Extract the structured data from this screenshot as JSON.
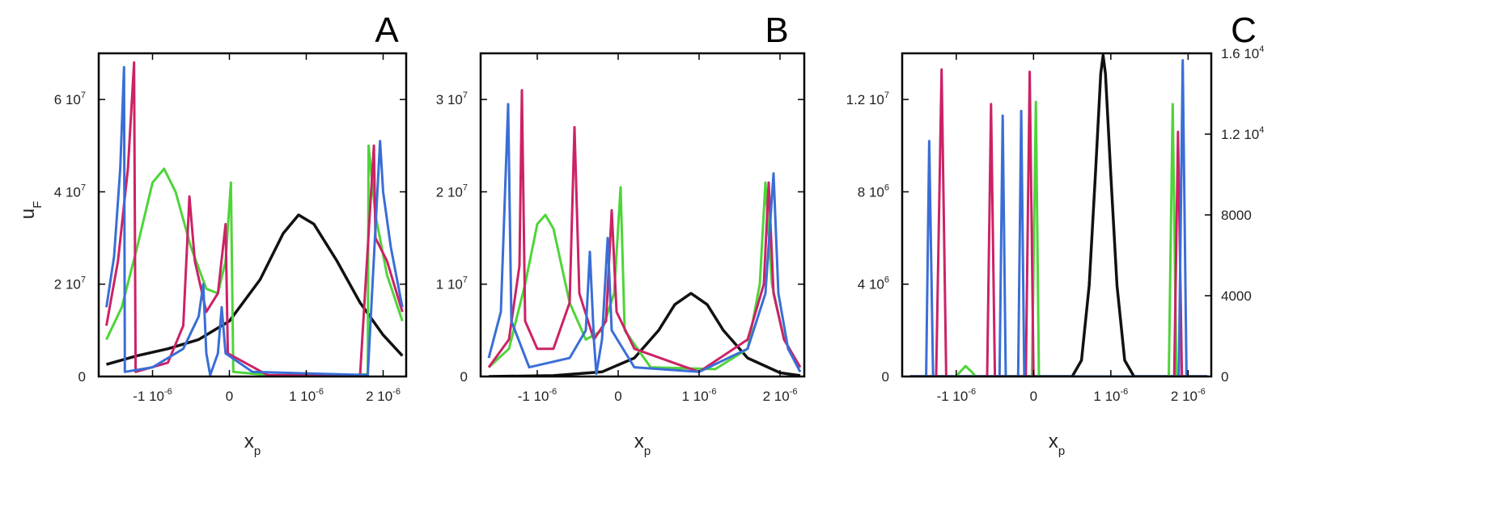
{
  "chart_data": [
    {
      "panel": "A",
      "type": "line",
      "xlim": [
        -1.7e-06,
        2.3e-06
      ],
      "ylim": [
        0,
        70000000.0
      ],
      "xticks": [
        {
          "v": -1e-06,
          "label": "-1 10",
          "exp": "-6"
        },
        {
          "v": 0,
          "label": "0",
          "exp": ""
        },
        {
          "v": 1e-06,
          "label": "1 10",
          "exp": "-6"
        },
        {
          "v": 2e-06,
          "label": "2 10",
          "exp": "-6"
        }
      ],
      "yticks": [
        {
          "v": 0,
          "label": "0",
          "exp": ""
        },
        {
          "v": 20000000.0,
          "label": "2 10",
          "exp": "7"
        },
        {
          "v": 40000000.0,
          "label": "4 10",
          "exp": "7"
        },
        {
          "v": 60000000.0,
          "label": "6 10",
          "exp": "7"
        }
      ],
      "xlabel": "x",
      "xlabel_sub": "p",
      "ylabel": "u",
      "ylabel_sub": "F",
      "series": [
        {
          "color": "#111111",
          "points": [
            [
              -1.6e-06,
              2600000.0
            ],
            [
              -1.2e-06,
              4500000.0
            ],
            [
              -8e-07,
              6000000.0
            ],
            [
              -4e-07,
              8000000.0
            ],
            [
              0,
              12000000.0
            ],
            [
              4e-07,
              21000000.0
            ],
            [
              7e-07,
              31000000.0
            ],
            [
              9e-07,
              35000000.0
            ],
            [
              1.1e-06,
              33000000.0
            ],
            [
              1.4e-06,
              25000000.0
            ],
            [
              1.7e-06,
              16000000.0
            ],
            [
              2e-06,
              9000000.0
            ],
            [
              2.25e-06,
              4500000.0
            ]
          ]
        },
        {
          "color": "#4fd43a",
          "points": [
            [
              -1.6e-06,
              8000000.0
            ],
            [
              -1.4e-06,
              15000000.0
            ],
            [
              -1.2e-06,
              28000000.0
            ],
            [
              -1e-06,
              42000000.0
            ],
            [
              -8.5e-07,
              45000000.0
            ],
            [
              -7e-07,
              40000000.0
            ],
            [
              -5e-07,
              28000000.0
            ],
            [
              -3e-07,
              19000000.0
            ],
            [
              -1.5e-07,
              18000000.0
            ],
            [
              -5e-08,
              25000000.0
            ],
            [
              2e-08,
              42000000.0
            ],
            [
              5e-08,
              1000000.0
            ],
            [
              5e-07,
              300000.0
            ],
            [
              1.5e-06,
              200000.0
            ],
            [
              1.8e-06,
              500000.0
            ],
            [
              1.81e-06,
              50000000.0
            ],
            [
              1.9e-06,
              35000000.0
            ],
            [
              2.05e-06,
              22000000.0
            ],
            [
              2.25e-06,
              12000000.0
            ]
          ]
        },
        {
          "color": "#cc2266",
          "points": [
            [
              -1.6e-06,
              11000000.0
            ],
            [
              -1.45e-06,
              25000000.0
            ],
            [
              -1.32e-06,
              45000000.0
            ],
            [
              -1.24e-06,
              68000000.0
            ],
            [
              -1.22e-06,
              1000000.0
            ],
            [
              -8e-07,
              3000000.0
            ],
            [
              -6e-07,
              11000000.0
            ],
            [
              -5.2e-07,
              39000000.0
            ],
            [
              -4.5e-07,
              25000000.0
            ],
            [
              -3e-07,
              14000000.0
            ],
            [
              -1.5e-07,
              18000000.0
            ],
            [
              -5e-08,
              33000000.0
            ],
            [
              -2e-08,
              5000000.0
            ],
            [
              5e-07,
              300000.0
            ],
            [
              1.7e-06,
              200000.0
            ],
            [
              1.88e-06,
              50000000.0
            ],
            [
              1.9e-06,
              30000000.0
            ],
            [
              2.05e-06,
              25000000.0
            ],
            [
              2.25e-06,
              14000000.0
            ]
          ]
        },
        {
          "color": "#3a6ed6",
          "points": [
            [
              -1.6e-06,
              15000000.0
            ],
            [
              -1.5e-06,
              26000000.0
            ],
            [
              -1.42e-06,
              45000000.0
            ],
            [
              -1.37e-06,
              67000000.0
            ],
            [
              -1.36e-06,
              1000000.0
            ],
            [
              -1e-06,
              2000000.0
            ],
            [
              -6e-07,
              6000000.0
            ],
            [
              -4e-07,
              13000000.0
            ],
            [
              -3.4e-07,
              20000000.0
            ],
            [
              -3e-07,
              5000000.0
            ],
            [
              -2.5e-07,
              300000.0
            ],
            [
              -1.5e-07,
              5000000.0
            ],
            [
              -1e-07,
              15000000.0
            ],
            [
              -5e-08,
              5000000.0
            ],
            [
              3e-07,
              1000000.0
            ],
            [
              1.8e-06,
              300000.0
            ],
            [
              1.96e-06,
              51000000.0
            ],
            [
              2e-06,
              40000000.0
            ],
            [
              2.1e-06,
              28000000.0
            ],
            [
              2.25e-06,
              15000000.0
            ]
          ]
        }
      ]
    },
    {
      "panel": "B",
      "type": "line",
      "xlim": [
        -1.7e-06,
        2.3e-06
      ],
      "ylim": [
        0,
        35000000.0
      ],
      "xticks": [
        {
          "v": -1e-06,
          "label": "-1 10",
          "exp": "-6"
        },
        {
          "v": 0,
          "label": "0",
          "exp": ""
        },
        {
          "v": 1e-06,
          "label": "1 10",
          "exp": "-6"
        },
        {
          "v": 2e-06,
          "label": "2 10",
          "exp": "-6"
        }
      ],
      "yticks": [
        {
          "v": 0,
          "label": "0",
          "exp": ""
        },
        {
          "v": 10000000.0,
          "label": "1 10",
          "exp": "7"
        },
        {
          "v": 20000000.0,
          "label": "2 10",
          "exp": "7"
        },
        {
          "v": 30000000.0,
          "label": "3 10",
          "exp": "7"
        }
      ],
      "xlabel": "x",
      "xlabel_sub": "p",
      "series": [
        {
          "color": "#111111",
          "points": [
            [
              -1.6e-06,
              0
            ],
            [
              -8e-07,
              100000.0
            ],
            [
              -2e-07,
              500000.0
            ],
            [
              2e-07,
              2000000.0
            ],
            [
              5e-07,
              5000000.0
            ],
            [
              7e-07,
              7800000.0
            ],
            [
              9e-07,
              9000000.0
            ],
            [
              1.1e-06,
              7800000.0
            ],
            [
              1.3e-06,
              5000000.0
            ],
            [
              1.6e-06,
              2000000.0
            ],
            [
              2e-06,
              400000.0
            ],
            [
              2.25e-06,
              100000.0
            ]
          ]
        },
        {
          "color": "#4fd43a",
          "points": [
            [
              -1.6e-06,
              1000000.0
            ],
            [
              -1.35e-06,
              3000000.0
            ],
            [
              -1.15e-06,
              10000000.0
            ],
            [
              -1e-06,
              16500000.0
            ],
            [
              -9e-07,
              17500000.0
            ],
            [
              -8e-07,
              16000000.0
            ],
            [
              -6e-07,
              8000000.0
            ],
            [
              -4e-07,
              4000000.0
            ],
            [
              -2e-07,
              5000000.0
            ],
            [
              -5e-08,
              9000000.0
            ],
            [
              3e-08,
              20500000.0
            ],
            [
              8e-08,
              5000000.0
            ],
            [
              4e-07,
              1000000.0
            ],
            [
              1.2e-06,
              800000.0
            ],
            [
              1.6e-06,
              3000000.0
            ],
            [
              1.75e-06,
              10000000.0
            ],
            [
              1.82e-06,
              21000000.0
            ],
            [
              1.9e-06,
              10000000.0
            ],
            [
              2.05e-06,
              4000000.0
            ],
            [
              2.25e-06,
              1000000.0
            ]
          ]
        },
        {
          "color": "#cc2266",
          "points": [
            [
              -1.6e-06,
              1000000.0
            ],
            [
              -1.35e-06,
              4000000.0
            ],
            [
              -1.22e-06,
              12000000.0
            ],
            [
              -1.19e-06,
              31000000.0
            ],
            [
              -1.15e-06,
              6000000.0
            ],
            [
              -1e-06,
              3000000.0
            ],
            [
              -8e-07,
              3000000.0
            ],
            [
              -6e-07,
              8000000.0
            ],
            [
              -5.4e-07,
              27000000.0
            ],
            [
              -4.8e-07,
              9000000.0
            ],
            [
              -3e-07,
              4000000.0
            ],
            [
              -1.5e-07,
              6000000.0
            ],
            [
              -8e-08,
              18000000.0
            ],
            [
              -2e-08,
              7000000.0
            ],
            [
              2e-07,
              3000000.0
            ],
            [
              1e-06,
              500000.0
            ],
            [
              1.6e-06,
              4000000.0
            ],
            [
              1.8e-06,
              10000000.0
            ],
            [
              1.86e-06,
              21000000.0
            ],
            [
              1.92e-06,
              9000000.0
            ],
            [
              2.05e-06,
              4000000.0
            ],
            [
              2.25e-06,
              1000000.0
            ]
          ]
        },
        {
          "color": "#3a6ed6",
          "points": [
            [
              -1.6e-06,
              2000000.0
            ],
            [
              -1.45e-06,
              7000000.0
            ],
            [
              -1.36e-06,
              29500000.0
            ],
            [
              -1.32e-06,
              6000000.0
            ],
            [
              -1.1e-06,
              1000000.0
            ],
            [
              -6e-07,
              2000000.0
            ],
            [
              -4e-07,
              5000000.0
            ],
            [
              -3.5e-07,
              13500000.0
            ],
            [
              -3e-07,
              4000000.0
            ],
            [
              -2.7e-07,
              300000.0
            ],
            [
              -2e-07,
              4000000.0
            ],
            [
              -1.3e-07,
              15000000.0
            ],
            [
              -8e-08,
              5000000.0
            ],
            [
              2e-07,
              1000000.0
            ],
            [
              1e-06,
              500000.0
            ],
            [
              1.6e-06,
              3000000.0
            ],
            [
              1.82e-06,
              9000000.0
            ],
            [
              1.92e-06,
              22000000.0
            ],
            [
              1.98e-06,
              9000000.0
            ],
            [
              2.1e-06,
              3000000.0
            ],
            [
              2.25e-06,
              500000.0
            ]
          ]
        }
      ]
    },
    {
      "panel": "C",
      "type": "line",
      "xlim": [
        -1.7e-06,
        2.3e-06
      ],
      "ylim": [
        0,
        14000000.0
      ],
      "y2lim": [
        0,
        16000
      ],
      "xticks": [
        {
          "v": -1e-06,
          "label": "-1 10",
          "exp": "-6"
        },
        {
          "v": 0,
          "label": "0",
          "exp": ""
        },
        {
          "v": 1e-06,
          "label": "1 10",
          "exp": "-6"
        },
        {
          "v": 2e-06,
          "label": "2 10",
          "exp": "-6"
        }
      ],
      "yticks": [
        {
          "v": 0,
          "label": "0",
          "exp": ""
        },
        {
          "v": 4000000.0,
          "label": "4 10",
          "exp": "6"
        },
        {
          "v": 8000000.0,
          "label": "8 10",
          "exp": "6"
        },
        {
          "v": 12000000.0,
          "label": "1.2 10",
          "exp": "7"
        }
      ],
      "y2ticks": [
        {
          "v": 0,
          "label": "0",
          "exp": ""
        },
        {
          "v": 4000,
          "label": "4000",
          "exp": ""
        },
        {
          "v": 8000,
          "label": "8000",
          "exp": ""
        },
        {
          "v": 12000,
          "label": "1.2 10",
          "exp": "4"
        },
        {
          "v": 16000,
          "label": "1.6 10",
          "exp": "4"
        }
      ],
      "xlabel": "x",
      "xlabel_sub": "p",
      "series": [
        {
          "color": "#111111",
          "axis": "right",
          "points": [
            [
              -1.6e-06,
              0
            ],
            [
              5e-07,
              0
            ],
            [
              6.2e-07,
              800
            ],
            [
              7.2e-07,
              4500
            ],
            [
              8e-07,
              10000
            ],
            [
              8.7e-07,
              15000
            ],
            [
              9e-07,
              15900
            ],
            [
              9.3e-07,
              15000
            ],
            [
              1e-06,
              10000
            ],
            [
              1.08e-06,
              4500
            ],
            [
              1.18e-06,
              800
            ],
            [
              1.3e-06,
              0
            ],
            [
              2.25e-06,
              0
            ]
          ]
        },
        {
          "color": "#4fd43a",
          "points": [
            [
              -1.6e-06,
              0
            ],
            [
              -1e-06,
              0
            ],
            [
              -9.5e-07,
              200000.0
            ],
            [
              -8.8e-07,
              450000.0
            ],
            [
              -8e-07,
              200000.0
            ],
            [
              -7.5e-07,
              0
            ],
            [
              -2e-08,
              0
            ],
            [
              3e-08,
              11900000.0
            ],
            [
              7e-08,
              0
            ],
            [
              1.75e-06,
              0
            ],
            [
              1.8e-06,
              11800000.0
            ],
            [
              1.85e-06,
              0
            ],
            [
              2.25e-06,
              0
            ]
          ]
        },
        {
          "color": "#cc2266",
          "points": [
            [
              -1.6e-06,
              0
            ],
            [
              -1.26e-06,
              0
            ],
            [
              -1.19e-06,
              13300000.0
            ],
            [
              -1.13e-06,
              0
            ],
            [
              -6e-07,
              0
            ],
            [
              -5.5e-07,
              11800000.0
            ],
            [
              -5e-07,
              0
            ],
            [
              -1e-07,
              0
            ],
            [
              -5e-08,
              13200000.0
            ],
            [
              0.0,
              0
            ],
            [
              1.82e-06,
              0
            ],
            [
              1.87e-06,
              10600000.0
            ],
            [
              1.92e-06,
              0
            ],
            [
              2.25e-06,
              0
            ]
          ]
        },
        {
          "color": "#3a6ed6",
          "points": [
            [
              -1.6e-06,
              0
            ],
            [
              -1.39e-06,
              0
            ],
            [
              -1.35e-06,
              10200000.0
            ],
            [
              -1.3e-06,
              0
            ],
            [
              -4.4e-07,
              0
            ],
            [
              -4e-07,
              11300000.0
            ],
            [
              -3.6e-07,
              0
            ],
            [
              -2e-07,
              0
            ],
            [
              -1.6e-07,
              11500000.0
            ],
            [
              -1.2e-07,
              0
            ],
            [
              1.88e-06,
              0
            ],
            [
              1.93e-06,
              13700000.0
            ],
            [
              1.98e-06,
              0
            ],
            [
              2.25e-06,
              0
            ]
          ]
        }
      ]
    }
  ],
  "panel_letters": [
    "A",
    "B",
    "C"
  ]
}
